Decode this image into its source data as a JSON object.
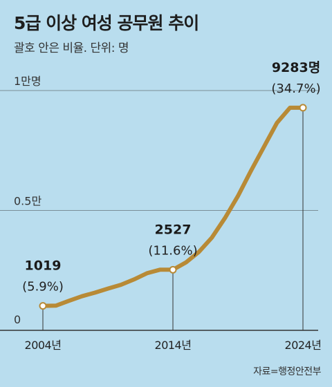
{
  "title": "5급 이상 여성 공무원 추이",
  "subtitle": "괄호 안은 비율. 단위: 명",
  "source": "자료=행정안전부",
  "colors": {
    "background": "#b9ddee",
    "line": "#b88a36",
    "marker_fill": "#ffffff"
  },
  "chart_data": {
    "type": "line",
    "title": "5급 이상 여성 공무원 추이",
    "subtitle": "괄호 안은 비율. 단위: 명",
    "ylim": [
      0,
      10000
    ],
    "yticks": [
      {
        "value": 0,
        "label": "0"
      },
      {
        "value": 5000,
        "label": "0.5만"
      },
      {
        "value": 10000,
        "label": "1만명"
      }
    ],
    "xlim": [
      2004,
      2024
    ],
    "xticks": [
      {
        "value": 2004,
        "label": "2004년"
      },
      {
        "value": 2014,
        "label": "2014년"
      },
      {
        "value": 2024,
        "label": "2024년"
      }
    ],
    "series": [
      {
        "x": [
          2004,
          2005,
          2006,
          2007,
          2008,
          2009,
          2010,
          2011,
          2012,
          2013,
          2014,
          2015,
          2016,
          2017,
          2018,
          2019,
          2020,
          2021,
          2022,
          2023,
          2024
        ],
        "values": [
          1019,
          1030,
          1230,
          1420,
          1570,
          1740,
          1900,
          2120,
          2380,
          2527,
          2527,
          2830,
          3270,
          3870,
          4680,
          5600,
          6650,
          7650,
          8650,
          9283,
          9283
        ]
      }
    ],
    "annotations": [
      {
        "x": 2004,
        "value": 1019,
        "label": "1019",
        "pct": "(5.9%)"
      },
      {
        "x": 2014,
        "value": 2527,
        "label": "2527",
        "pct": "(11.6%)"
      },
      {
        "x": 2024,
        "value": 9283,
        "label": "9283명",
        "pct": "(34.7%)"
      }
    ],
    "grid": true
  }
}
